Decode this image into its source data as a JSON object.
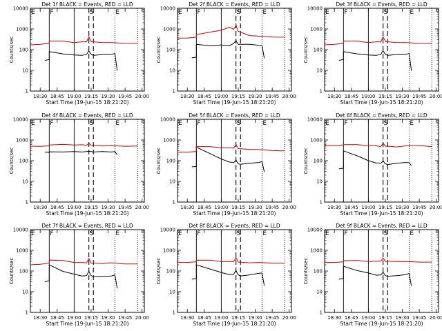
{
  "figure": {
    "xlabel": "Start Time (19-Jun-15 18:21:20)",
    "ylabel": "Counts/sec",
    "x_ticks": [
      "18:30",
      "18:45",
      "19:00",
      "19:15",
      "19:30",
      "19:45",
      "20:00"
    ],
    "y_ticks": [
      "1",
      "10",
      "100",
      "1000",
      "10000"
    ],
    "markers": [
      {
        "label": "E",
        "time": "18:21:20",
        "style": "dotted"
      },
      {
        "label": "F",
        "time": "18:38",
        "style": "solid"
      },
      {
        "label": "",
        "time": "19:00",
        "style": "solid"
      },
      {
        "label": "S",
        "time": "19:13",
        "style": "dashed"
      },
      {
        "label": "",
        "time": "19:17",
        "style": "dashed"
      },
      {
        "label": "E",
        "time": "19:36",
        "style": "dotted"
      },
      {
        "label": "",
        "time": "19:56",
        "style": "dotted"
      }
    ],
    "colors": {
      "events": "#000000",
      "lld": "#cc0000"
    }
  },
  "chart_data": [
    {
      "type": "line",
      "title": "Det 1f BLACK = Events, RED = LLD",
      "xlim": [
        "18:21:20",
        "20:02"
      ],
      "ylim": [
        1,
        10000
      ],
      "yscale": "log",
      "series": [
        {
          "x": [
            "18:34",
            "18:38",
            "18:38",
            "18:50",
            "19:00",
            "19:07",
            "19:11",
            "19:13",
            "19:15",
            "19:17",
            "19:25",
            "19:33",
            "19:36",
            "19:38"
          ],
          "y": [
            30,
            35,
            80,
            65,
            55,
            55,
            60,
            90,
            60,
            55,
            58,
            62,
            65,
            10
          ]
        },
        {
          "x": [
            "18:21",
            "18:30",
            "18:38",
            "18:38",
            "18:50",
            "19:00",
            "19:07",
            "19:11",
            "19:13",
            "19:15",
            "19:17",
            "19:25",
            "19:33",
            "19:45",
            "19:56"
          ],
          "y": [
            170,
            190,
            200,
            270,
            260,
            230,
            240,
            250,
            420,
            260,
            240,
            230,
            220,
            210,
            200
          ]
        }
      ]
    },
    {
      "type": "line",
      "title": "Det 2f BLACK = Events, RED = LLD",
      "xlim": [
        "18:21:20",
        "20:02"
      ],
      "ylim": [
        1,
        10000
      ],
      "yscale": "log",
      "series": [
        {
          "x": [
            "18:34",
            "18:38",
            "18:38",
            "18:50",
            "19:00",
            "19:07",
            "19:11",
            "19:13",
            "19:15",
            "19:17",
            "19:25",
            "19:33",
            "19:36",
            "19:38"
          ],
          "y": [
            40,
            45,
            180,
            160,
            170,
            160,
            200,
            280,
            180,
            190,
            180,
            170,
            160,
            40
          ]
        },
        {
          "x": [
            "18:21",
            "18:30",
            "18:38",
            "18:38",
            "18:50",
            "19:00",
            "19:07",
            "19:11",
            "19:13",
            "19:15",
            "19:17",
            "19:25",
            "19:33",
            "19:45",
            "19:56"
          ],
          "y": [
            360,
            380,
            400,
            550,
            700,
            900,
            1200,
            1000,
            1500,
            800,
            700,
            500,
            450,
            420,
            400
          ]
        }
      ]
    },
    {
      "type": "line",
      "title": "Det 3f BLACK = Events, RED = LLD",
      "xlim": [
        "18:21:20",
        "20:02"
      ],
      "ylim": [
        1,
        10000
      ],
      "yscale": "log",
      "series": [
        {
          "x": [
            "18:34",
            "18:38",
            "18:38",
            "18:50",
            "19:00",
            "19:07",
            "19:11",
            "19:13",
            "19:15",
            "19:17",
            "19:25",
            "19:33",
            "19:36",
            "19:38"
          ],
          "y": [
            30,
            35,
            80,
            65,
            55,
            55,
            60,
            90,
            60,
            55,
            58,
            62,
            65,
            10
          ]
        },
        {
          "x": [
            "18:21",
            "18:30",
            "18:38",
            "18:38",
            "18:50",
            "19:00",
            "19:07",
            "19:11",
            "19:13",
            "19:15",
            "19:17",
            "19:25",
            "19:33",
            "19:45",
            "19:56"
          ],
          "y": [
            170,
            190,
            200,
            270,
            260,
            230,
            240,
            250,
            420,
            260,
            240,
            230,
            220,
            210,
            200
          ]
        }
      ]
    },
    {
      "type": "line",
      "title": "Det 4f BLACK = Events, RED = LLD",
      "xlim": [
        "18:21:20",
        "20:02"
      ],
      "ylim": [
        1,
        10000
      ],
      "yscale": "log",
      "series": [
        {
          "x": [
            "18:34",
            "18:38",
            "18:38",
            "18:50",
            "19:00",
            "19:07",
            "19:11",
            "19:13",
            "19:15",
            "19:17",
            "19:25",
            "19:33",
            "19:36",
            "19:38"
          ],
          "y": [
            260,
            265,
            270,
            275,
            275,
            275,
            275,
            300,
            275,
            275,
            275,
            275,
            275,
            200
          ]
        },
        {
          "x": [
            "18:21",
            "18:30",
            "18:38",
            "18:38",
            "18:50",
            "19:00",
            "19:07",
            "19:11",
            "19:13",
            "19:15",
            "19:17",
            "19:25",
            "19:33",
            "19:45",
            "19:56"
          ],
          "y": [
            500,
            510,
            520,
            600,
            610,
            600,
            590,
            580,
            700,
            560,
            550,
            540,
            530,
            520,
            510
          ]
        }
      ]
    },
    {
      "type": "line",
      "title": "Det 5f BLACK = Events, RED = LLD",
      "xlim": [
        "18:21:20",
        "20:02"
      ],
      "ylim": [
        1,
        10000
      ],
      "yscale": "log",
      "series": [
        {
          "x": [
            "18:34",
            "18:38",
            "18:38",
            "18:50",
            "19:00",
            "19:07",
            "19:11",
            "19:13",
            "19:15",
            "19:17",
            "19:25",
            "19:33",
            "19:36",
            "19:38"
          ],
          "y": [
            50,
            55,
            450,
            230,
            120,
            90,
            80,
            110,
            70,
            70,
            75,
            85,
            90,
            30
          ]
        },
        {
          "x": [
            "18:21",
            "18:30",
            "18:38",
            "18:38",
            "18:50",
            "19:00",
            "19:07",
            "19:11",
            "19:13",
            "19:15",
            "19:17",
            "19:25",
            "19:33",
            "19:45",
            "19:56"
          ],
          "y": [
            260,
            270,
            280,
            500,
            480,
            440,
            420,
            420,
            600,
            400,
            380,
            360,
            350,
            320,
            300
          ]
        }
      ]
    },
    {
      "type": "line",
      "title": "Det 6f BLACK = Events, RED = LLD",
      "xlim": [
        "18:21:20",
        "20:02"
      ],
      "ylim": [
        1,
        10000
      ],
      "yscale": "log",
      "series": [
        {
          "x": [
            "18:34",
            "18:38",
            "18:38",
            "18:50",
            "19:00",
            "19:07",
            "19:11",
            "19:13",
            "19:15",
            "19:17",
            "19:25",
            "19:33",
            "19:36",
            "19:38"
          ],
          "y": [
            40,
            45,
            300,
            180,
            100,
            80,
            75,
            100,
            70,
            68,
            75,
            85,
            80,
            60
          ]
        },
        {
          "x": [
            "18:21",
            "18:30",
            "18:38",
            "18:38",
            "18:50",
            "19:00",
            "19:07",
            "19:11",
            "19:13",
            "19:15",
            "19:17",
            "19:25",
            "19:33",
            "19:45",
            "19:56"
          ],
          "y": [
            550,
            560,
            580,
            620,
            600,
            560,
            520,
            500,
            700,
            520,
            500,
            480,
            520,
            560,
            480
          ]
        }
      ]
    },
    {
      "type": "line",
      "title": "Det 7f BLACK = Events, RED = LLD",
      "xlim": [
        "18:21:20",
        "20:02"
      ],
      "ylim": [
        1,
        10000
      ],
      "yscale": "log",
      "series": [
        {
          "x": [
            "18:34",
            "18:38",
            "18:38",
            "18:50",
            "19:00",
            "19:07",
            "19:11",
            "19:13",
            "19:15",
            "19:17",
            "19:25",
            "19:33",
            "19:36",
            "19:38"
          ],
          "y": [
            30,
            35,
            200,
            100,
            70,
            60,
            60,
            100,
            60,
            55,
            55,
            60,
            65,
            15
          ]
        },
        {
          "x": [
            "18:21",
            "18:30",
            "18:38",
            "18:38",
            "18:50",
            "19:00",
            "19:07",
            "19:11",
            "19:13",
            "19:15",
            "19:17",
            "19:25",
            "19:33",
            "19:45",
            "19:56"
          ],
          "y": [
            200,
            220,
            240,
            350,
            320,
            270,
            260,
            260,
            400,
            250,
            240,
            240,
            250,
            230,
            220
          ]
        }
      ]
    },
    {
      "type": "line",
      "title": "Det 8f BLACK = Events, RED = LLD",
      "xlim": [
        "18:21:20",
        "20:02"
      ],
      "ylim": [
        1,
        10000
      ],
      "yscale": "log",
      "series": [
        {
          "x": [
            "18:34",
            "18:38",
            "18:38",
            "18:50",
            "19:00",
            "19:07",
            "19:11",
            "19:13",
            "19:15",
            "19:17",
            "19:25",
            "19:33",
            "19:36",
            "19:38"
          ],
          "y": [
            40,
            45,
            200,
            130,
            85,
            70,
            70,
            110,
            65,
            60,
            65,
            80,
            80,
            20
          ]
        },
        {
          "x": [
            "18:21",
            "18:30",
            "18:38",
            "18:38",
            "18:50",
            "19:00",
            "19:07",
            "19:11",
            "19:13",
            "19:15",
            "19:17",
            "19:25",
            "19:33",
            "19:45",
            "19:56"
          ],
          "y": [
            260,
            270,
            280,
            350,
            330,
            300,
            290,
            300,
            450,
            280,
            270,
            260,
            260,
            250,
            240
          ]
        }
      ]
    },
    {
      "type": "line",
      "title": "Det 9f BLACK = Events, RED = LLD",
      "xlim": [
        "18:21:20",
        "20:02"
      ],
      "ylim": [
        1,
        10000
      ],
      "yscale": "log",
      "series": [
        {
          "x": [
            "18:34",
            "18:38",
            "18:38",
            "18:50",
            "19:00",
            "19:07",
            "19:11",
            "19:13",
            "19:15",
            "19:17",
            "19:25",
            "19:33",
            "19:36",
            "19:38"
          ],
          "y": [
            40,
            45,
            170,
            110,
            80,
            65,
            65,
            90,
            60,
            58,
            60,
            70,
            75,
            20
          ]
        },
        {
          "x": [
            "18:21",
            "18:30",
            "18:38",
            "18:38",
            "18:50",
            "19:00",
            "19:07",
            "19:11",
            "19:13",
            "19:15",
            "19:17",
            "19:25",
            "19:33",
            "19:45",
            "19:56"
          ],
          "y": [
            260,
            270,
            280,
            330,
            320,
            300,
            300,
            310,
            430,
            300,
            300,
            300,
            290,
            280,
            270
          ]
        }
      ]
    }
  ]
}
